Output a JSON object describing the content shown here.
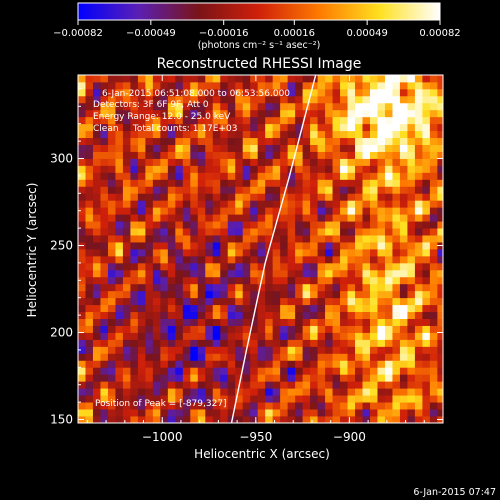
{
  "chart_data": {
    "type": "heatmap",
    "title": "Reconstructed RHESSI Image",
    "xlabel": "Heliocentric X (arcsec)",
    "ylabel": "Heliocentric Y (arcsec)",
    "xlim": [
      -1045,
      -850
    ],
    "ylim": [
      148,
      348
    ],
    "x_ticks": [
      -1000,
      -950,
      -900
    ],
    "x_tick_labels": [
      "−1000",
      "−950",
      "−900"
    ],
    "y_ticks": [
      150,
      200,
      250,
      300
    ],
    "y_tick_labels": [
      "150",
      "200",
      "250",
      "300"
    ],
    "colorbar": {
      "range": [
        -0.00082,
        0.00082
      ],
      "ticks": [
        -0.00082,
        -0.00049,
        -0.00016,
        0.00016,
        0.00049,
        0.00082
      ],
      "tick_labels": [
        "−0.00082",
        "−0.00049",
        "−0.00016",
        "0.00016",
        "0.00049",
        "0.00082"
      ],
      "unit_label": "(photons cm⁻² s⁻¹ asec⁻²)",
      "colors": [
        "#0000ff",
        "#5a1fb4",
        "#7a1418",
        "#d0200a",
        "#ff7a00",
        "#ffe020",
        "#ffffff"
      ]
    },
    "annotations": [
      "6-Jan-2015 06:51:08.000 to 06:53:56.000",
      "Detectors: 3F 6F 9F, Att 0",
      "Energy Range: 12.0 - 25.0 keV",
      "Clean     Total counts: 1.17E+03"
    ],
    "peak_label": "Position of Peak = [-879,327]",
    "peak": [
      -879,
      327
    ],
    "limb_line": [
      [
        -963,
        148
      ],
      [
        -955,
        190
      ],
      [
        -945,
        240
      ],
      [
        -932,
        290
      ],
      [
        -918,
        348
      ]
    ],
    "limb_color": "#ffffff",
    "footer": "6-Jan-2015 07:47",
    "grid": false
  }
}
